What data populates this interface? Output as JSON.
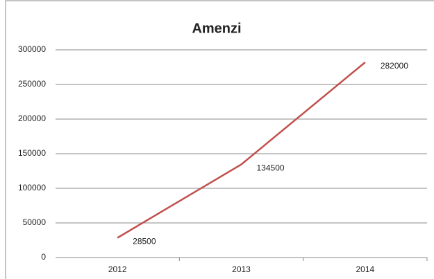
{
  "chart_data": {
    "type": "line",
    "title": "Amenzi",
    "categories": [
      "2012",
      "2013",
      "2014"
    ],
    "series": [
      {
        "name": "Amenzi",
        "color": "#c0504d",
        "values": [
          28500,
          134500,
          282000
        ]
      }
    ],
    "ylim": [
      0,
      300000
    ],
    "yticks": [
      0,
      50000,
      100000,
      150000,
      200000,
      250000,
      300000
    ],
    "grid": true,
    "data_labels": true
  }
}
